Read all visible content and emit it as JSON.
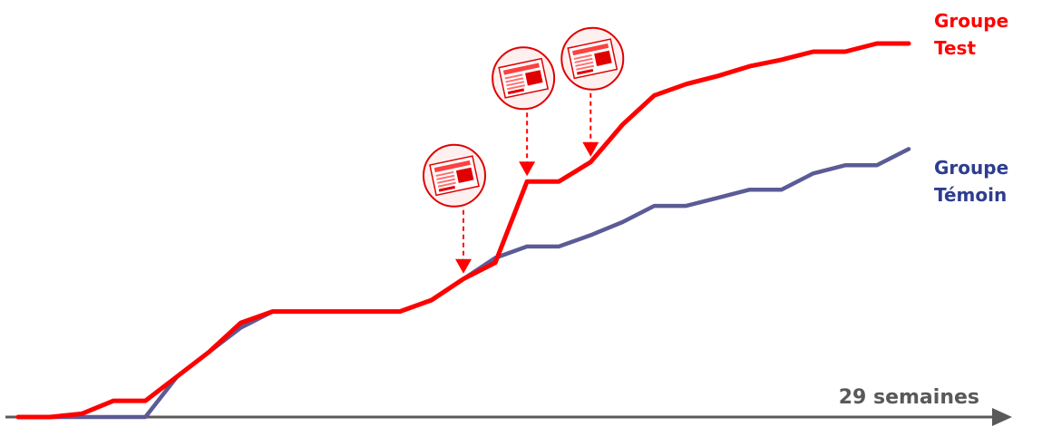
{
  "chart_data": {
    "type": "line",
    "x": [
      0,
      1,
      2,
      3,
      4,
      5,
      6,
      7,
      8,
      9,
      10,
      11,
      12,
      13,
      14,
      15,
      16,
      17,
      18,
      19,
      20,
      21,
      22,
      23,
      24,
      25,
      26,
      27,
      28
    ],
    "series": [
      {
        "name_lines": [
          "Groupe",
          "Test"
        ],
        "color": "#ff0000",
        "values": [
          0,
          0,
          0.2,
          1.0,
          1.0,
          2.5,
          4.0,
          5.8,
          6.5,
          6.5,
          6.5,
          6.5,
          6.5,
          7.2,
          8.5,
          9.5,
          14.5,
          14.5,
          15.7,
          18.0,
          19.8,
          20.5,
          21.0,
          21.6,
          22.0,
          22.5,
          22.5,
          23.0,
          23.0
        ]
      },
      {
        "name_lines": [
          "Groupe",
          "Témoin"
        ],
        "color": "#5b5b96",
        "values": [
          0,
          0,
          0,
          0,
          0,
          2.5,
          4.0,
          5.5,
          6.5,
          6.5,
          6.5,
          6.5,
          6.5,
          7.2,
          8.5,
          9.8,
          10.5,
          10.5,
          11.2,
          12.0,
          13.0,
          13.0,
          13.5,
          14.0,
          14.0,
          15.0,
          15.5,
          15.5,
          16.5
        ]
      }
    ],
    "xlabel": "29 semaines",
    "ylim": [
      0,
      23.0
    ],
    "grid": false,
    "legend": "right",
    "annotations": [
      {
        "kind": "newspaper-icon",
        "arrow_at_x": 14
      },
      {
        "kind": "newspaper-icon",
        "arrow_at_x": 16
      },
      {
        "kind": "newspaper-icon",
        "arrow_at_x": 18
      }
    ],
    "arrow_color": "#ff0000",
    "axis_color": "#595959"
  }
}
